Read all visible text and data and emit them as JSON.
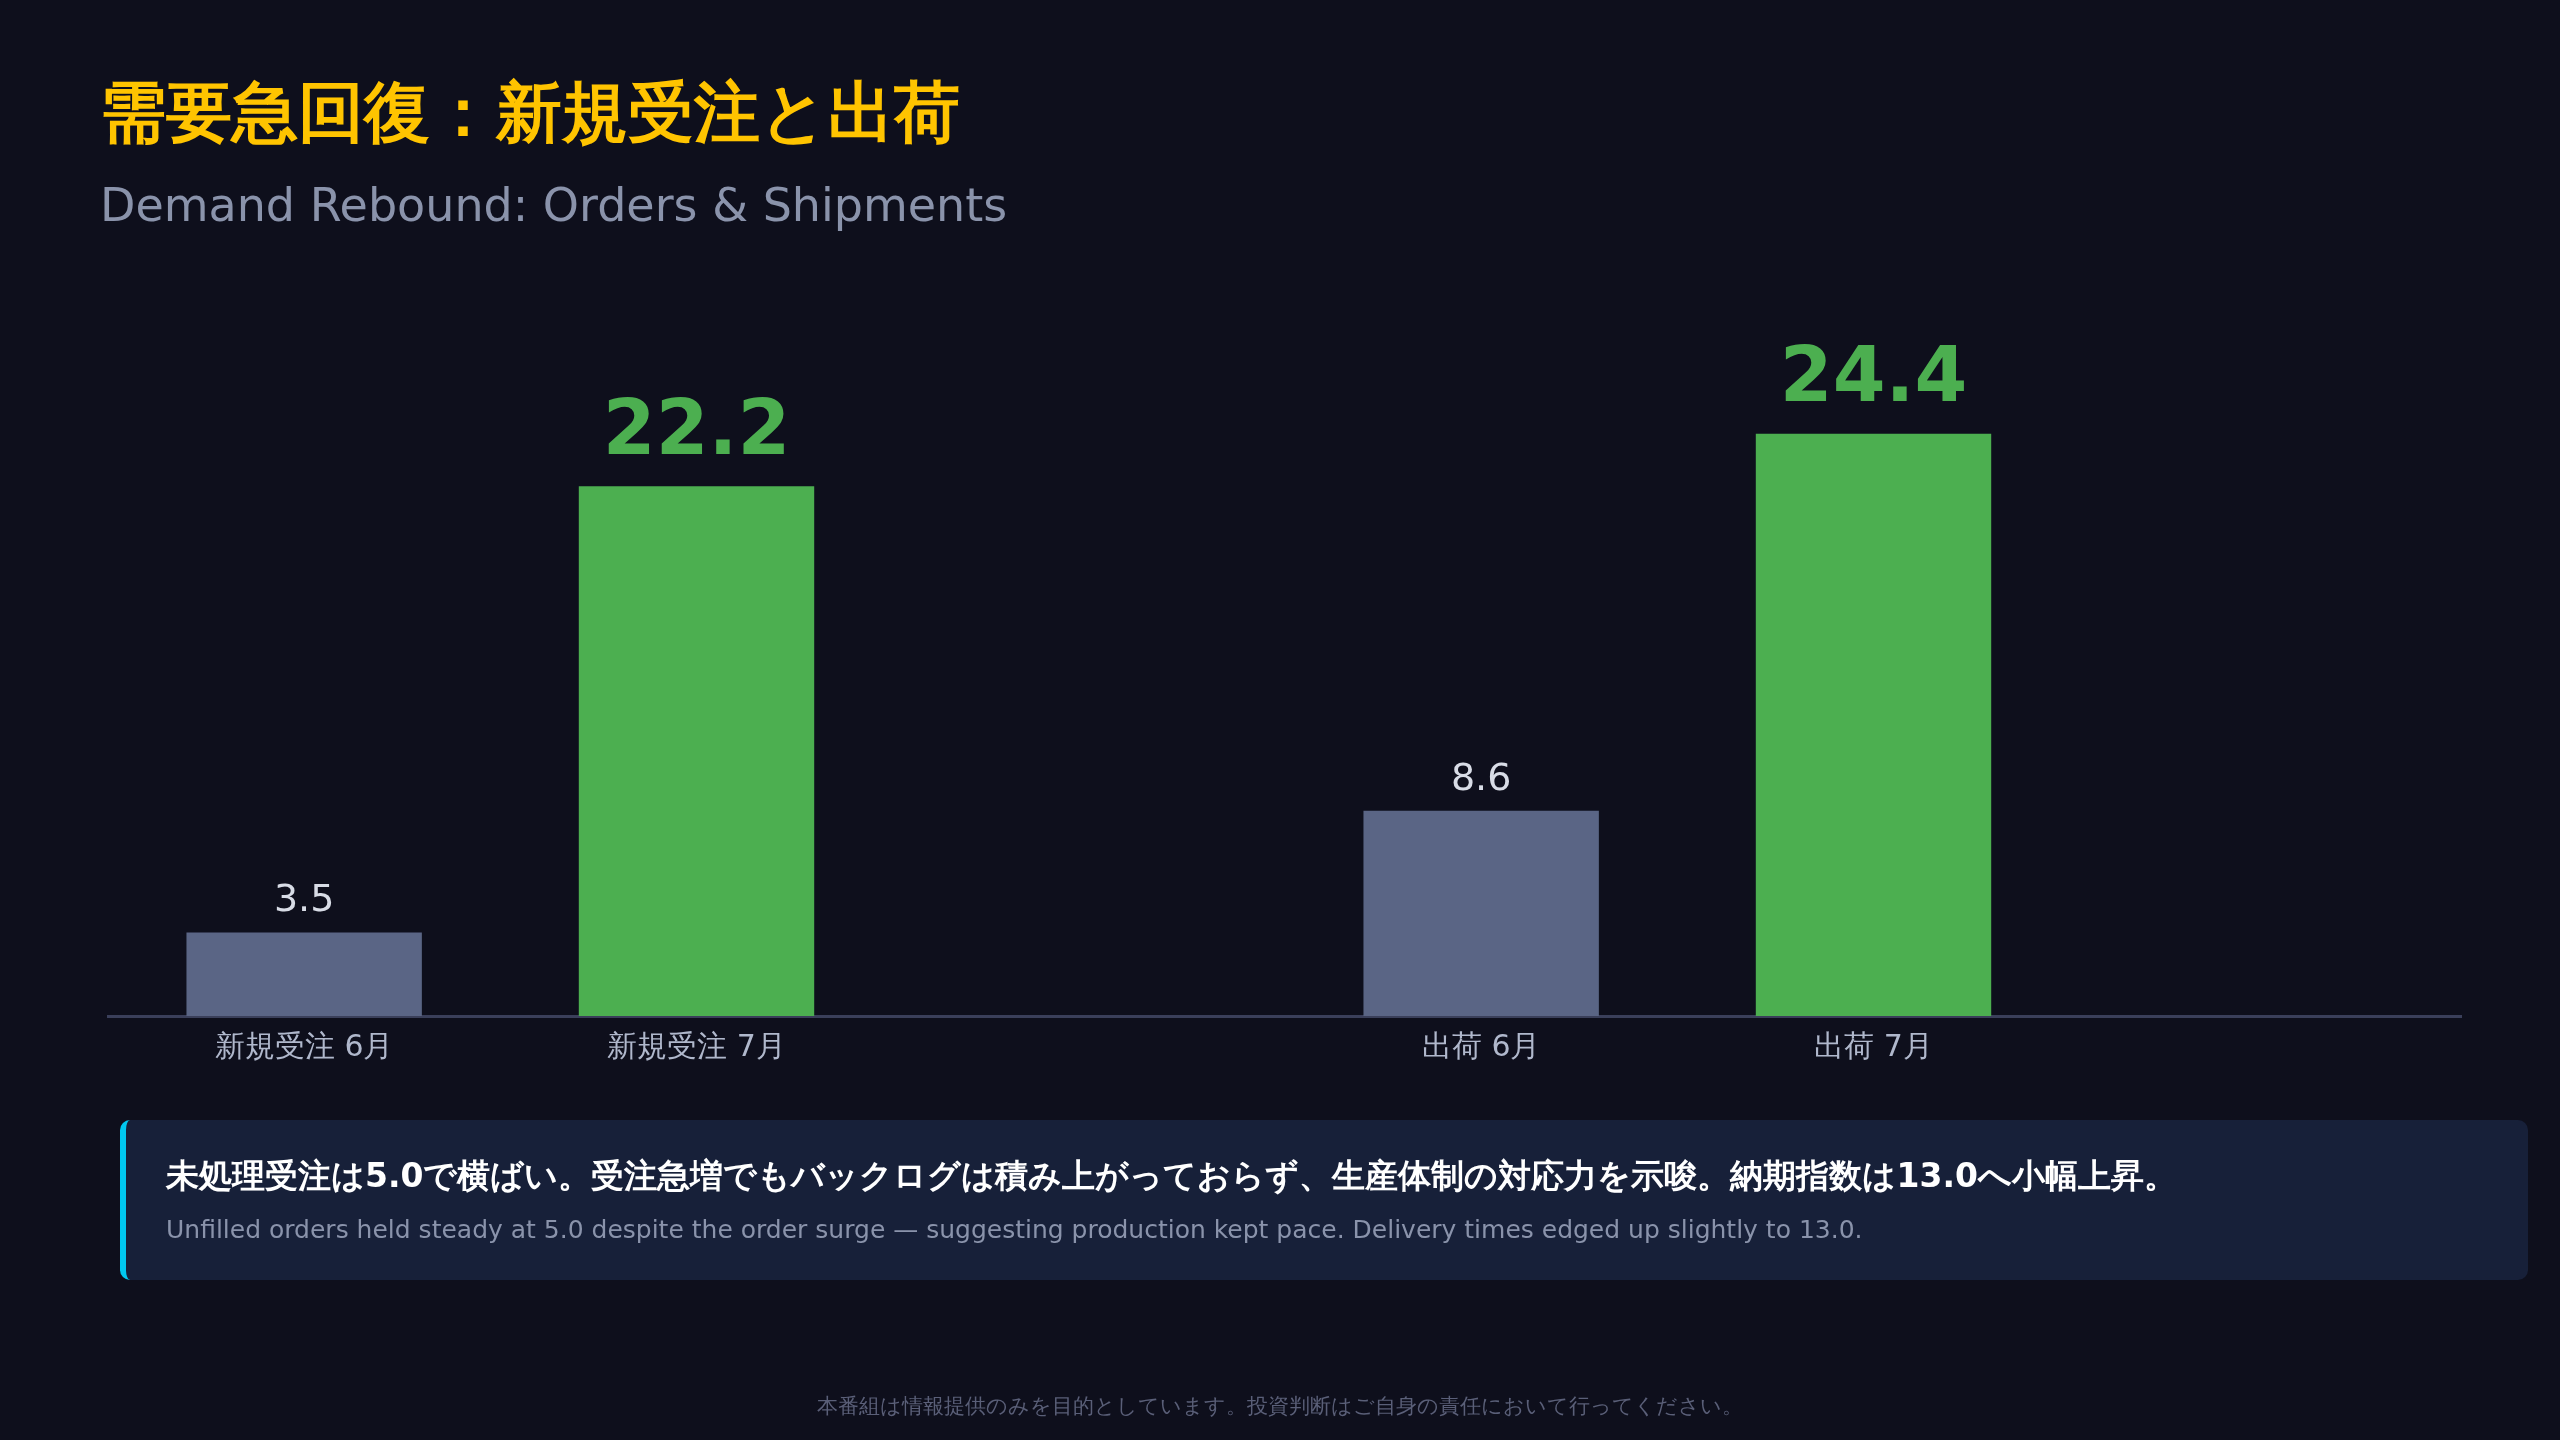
{
  "chart_data": {
    "type": "bar",
    "title": "需要急回復：新規受注と出荷",
    "subtitle": "Demand Rebound: Orders & Shipments",
    "categories": [
      "新規受注 6月",
      "新規受注 7月",
      null,
      "出荷 6月",
      "出荷 7月",
      null
    ],
    "values": [
      3.5,
      22.2,
      null,
      8.6,
      24.4,
      null
    ],
    "colors": [
      "#5a6585",
      "#4caf50",
      "#5a6585",
      "#5a6585",
      "#4caf50",
      "#5a6585"
    ],
    "relative": false,
    "data_labels": true,
    "grid": false,
    "legend": false,
    "annotations": [
      "未処理受注は5.0で横ばい。受注急増でもバックログは積み上がっておらず、生産体制の対応力を示唆。納期指数は13.0へ小幅上昇。",
      "Unfilled orders held steady at 5.0 despite the order surge — suggesting production kept pace. Delivery times edged up slightly to 13.0.",
      "本番組は情報提供のみを目的としています。投資判断はご自身の責任において行ってください。"
    ]
  }
}
